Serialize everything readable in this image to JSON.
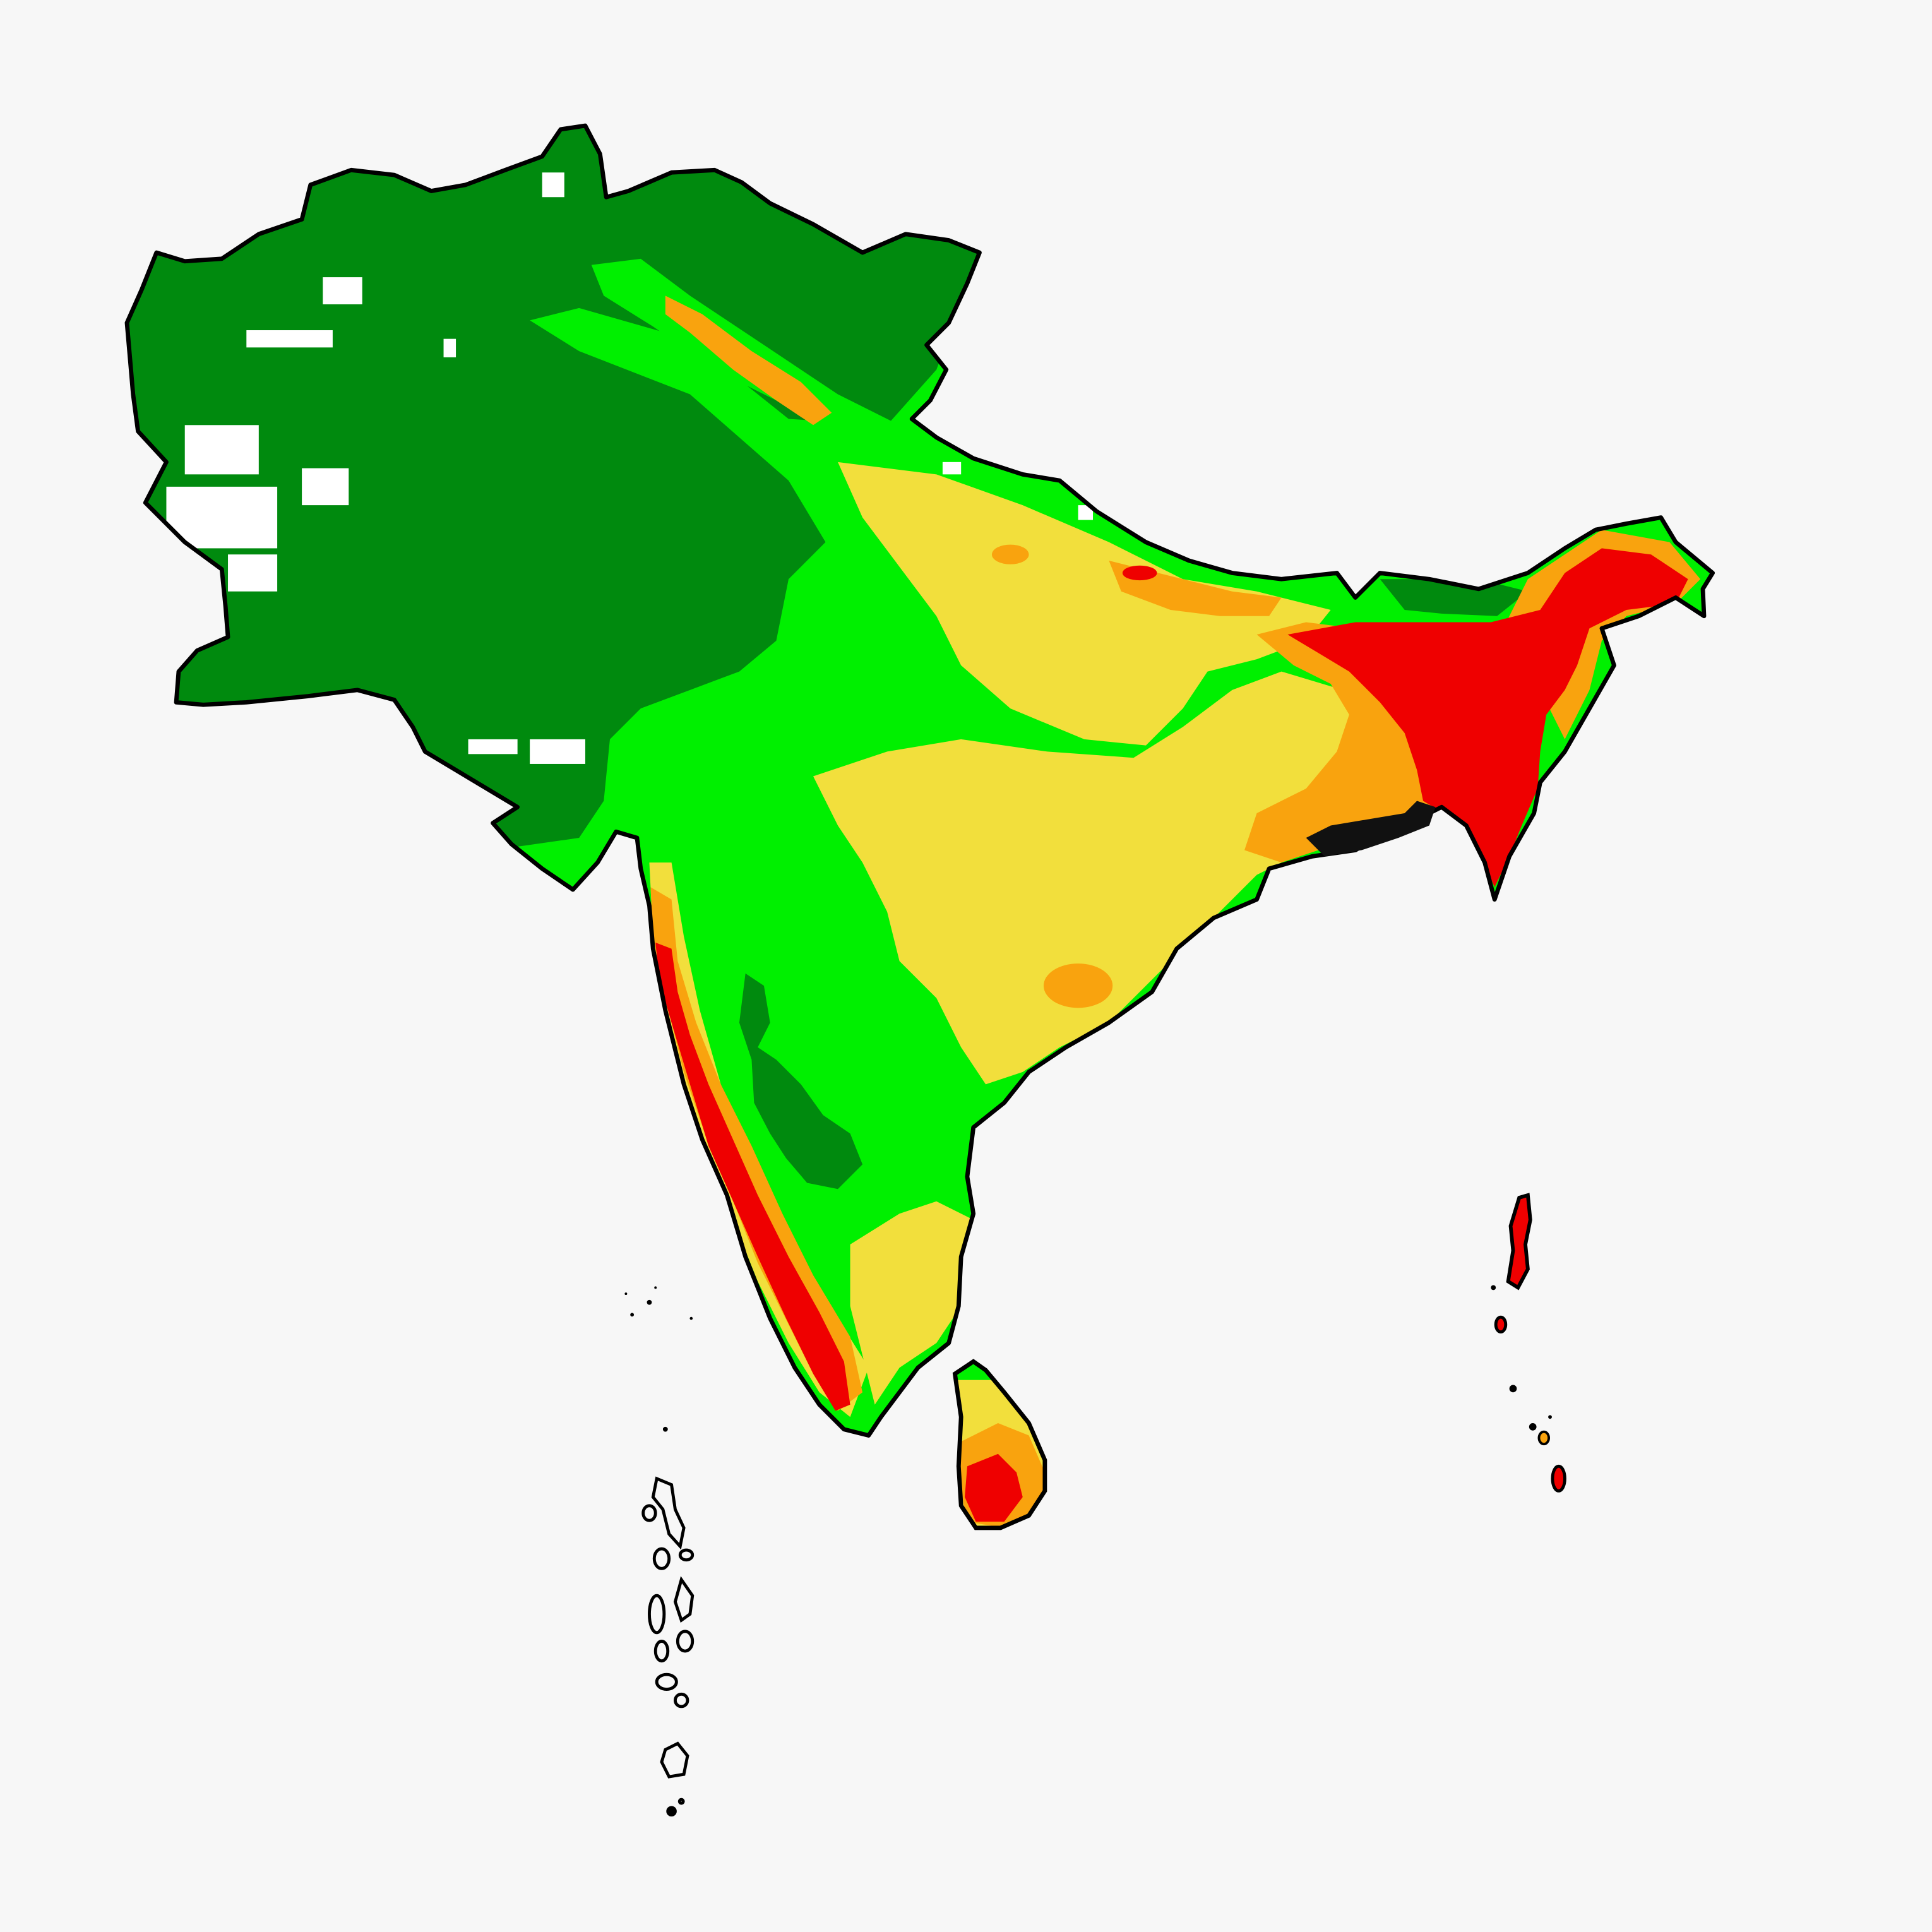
{
  "map": {
    "colors": {
      "background": "#f7f7f7",
      "class_1_dark_green": "#008a0e",
      "class_2_bright_green": "#00f000",
      "class_3_yellow": "#f2df3c",
      "class_4_orange": "#f9a30e",
      "class_5_red": "#ef0000",
      "no_data_white": "#ffffff",
      "outline": "#000000"
    },
    "regions": [
      "afghanistan-pakistan-plateau",
      "indo-gangetic-plain",
      "deccan-plateau",
      "western-ghats-coast",
      "bengal-northeast",
      "sri-lanka",
      "maldives",
      "andaman-nicobar-islands"
    ]
  }
}
